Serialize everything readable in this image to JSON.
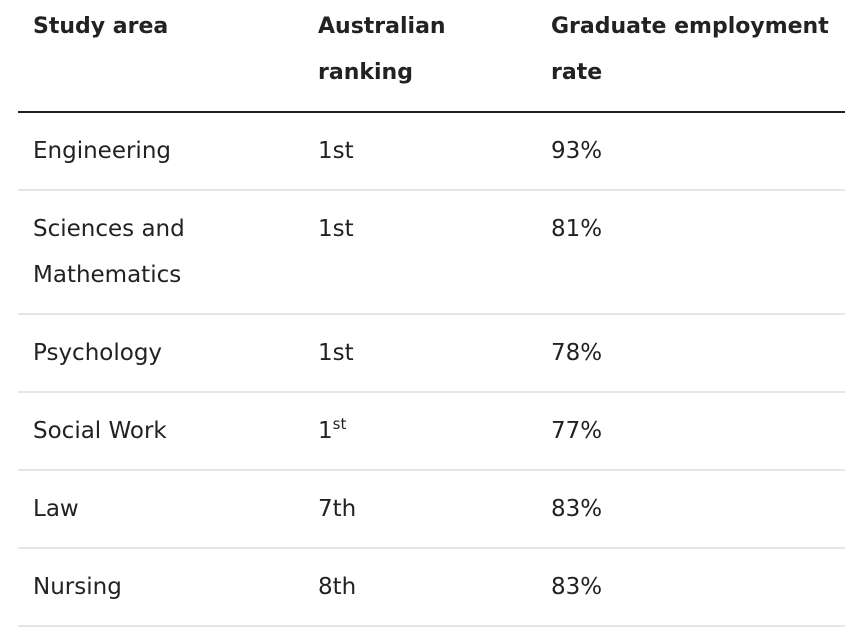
{
  "table": {
    "headers": [
      "Study area",
      "Australian ranking",
      "Graduate employment rate"
    ],
    "rows": [
      {
        "area": "Engineering",
        "rank_num": "1",
        "rank_suffix": "st",
        "superscript": false,
        "rate": "93%"
      },
      {
        "area": "Sciences and Mathematics",
        "rank_num": "1",
        "rank_suffix": "st",
        "superscript": false,
        "rate": "81%"
      },
      {
        "area": "Psychology",
        "rank_num": "1",
        "rank_suffix": "st",
        "superscript": false,
        "rate": "78%"
      },
      {
        "area": "Social Work",
        "rank_num": "1",
        "rank_suffix": "st",
        "superscript": true,
        "rate": "77%"
      },
      {
        "area": "Law",
        "rank_num": "7",
        "rank_suffix": "th",
        "superscript": false,
        "rate": "83%"
      },
      {
        "area": "Nursing",
        "rank_num": "8",
        "rank_suffix": "th",
        "superscript": false,
        "rate": "83%"
      }
    ]
  }
}
